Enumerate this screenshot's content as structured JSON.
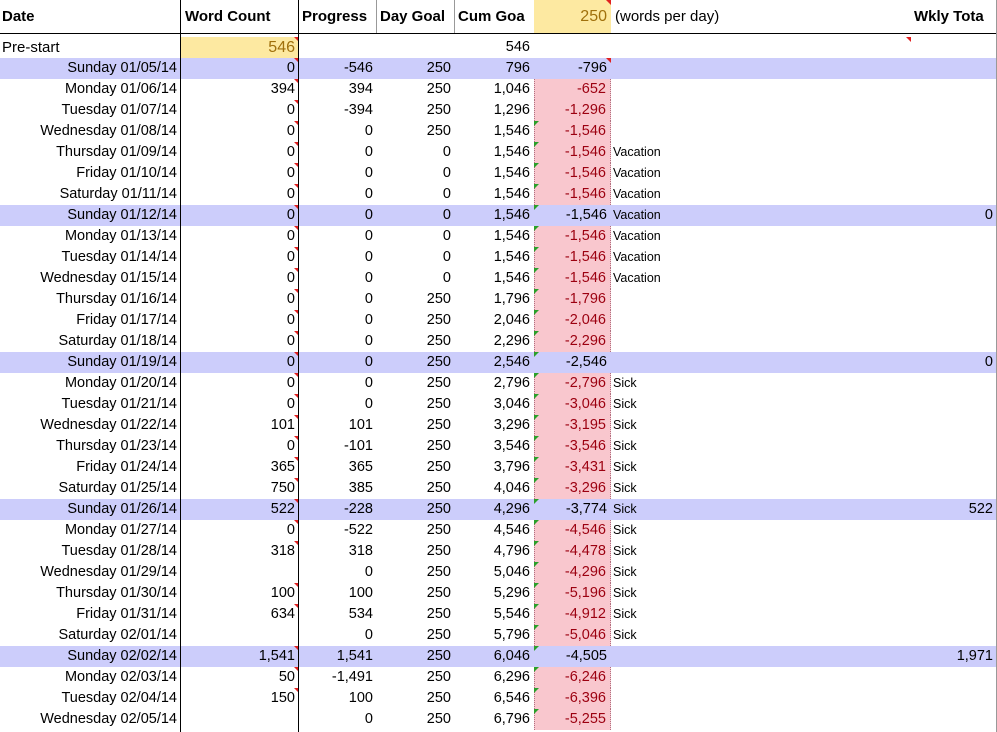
{
  "header": {
    "date": "Date",
    "word_count": "Word Count",
    "progress": "Progress",
    "day_goal": "Day Goal",
    "cum_goal": "Cum Goa",
    "goal_value": "250",
    "goal_note": "(words per day)",
    "weekly_total": "Wkly Tota"
  },
  "prestart": {
    "label": "Pre-start",
    "word_count": "546",
    "cum_goal": "546"
  },
  "colors": {
    "sunday_row": "#cccdfb",
    "negative_fill": "#f9c7ce",
    "negative_text": "#9c0010",
    "highlight": "#fde9a1"
  },
  "rows": [
    {
      "date": "Sunday 01/05/14",
      "wc": "0",
      "pr": "-546",
      "dg": "250",
      "cg": "796",
      "df": "-796",
      "note": "",
      "wt": "",
      "sunday": true,
      "neg": false
    },
    {
      "date": "Monday 01/06/14",
      "wc": "394",
      "pr": "394",
      "dg": "250",
      "cg": "1,046",
      "df": "-652",
      "note": "",
      "wt": "",
      "sunday": false,
      "neg": true
    },
    {
      "date": "Tuesday 01/07/14",
      "wc": "0",
      "pr": "-394",
      "dg": "250",
      "cg": "1,296",
      "df": "-1,296",
      "note": "",
      "wt": "",
      "sunday": false,
      "neg": true
    },
    {
      "date": "Wednesday 01/08/14",
      "wc": "0",
      "pr": "0",
      "dg": "250",
      "cg": "1,546",
      "df": "-1,546",
      "note": "",
      "wt": "",
      "sunday": false,
      "neg": true
    },
    {
      "date": "Thursday 01/09/14",
      "wc": "0",
      "pr": "0",
      "dg": "0",
      "cg": "1,546",
      "df": "-1,546",
      "note": "Vacation",
      "wt": "",
      "sunday": false,
      "neg": true
    },
    {
      "date": "Friday 01/10/14",
      "wc": "0",
      "pr": "0",
      "dg": "0",
      "cg": "1,546",
      "df": "-1,546",
      "note": "Vacation",
      "wt": "",
      "sunday": false,
      "neg": true
    },
    {
      "date": "Saturday 01/11/14",
      "wc": "0",
      "pr": "0",
      "dg": "0",
      "cg": "1,546",
      "df": "-1,546",
      "note": "Vacation",
      "wt": "",
      "sunday": false,
      "neg": true
    },
    {
      "date": "Sunday 01/12/14",
      "wc": "0",
      "pr": "0",
      "dg": "0",
      "cg": "1,546",
      "df": "-1,546",
      "note": "Vacation",
      "wt": "0",
      "sunday": true,
      "neg": false
    },
    {
      "date": "Monday 01/13/14",
      "wc": "0",
      "pr": "0",
      "dg": "0",
      "cg": "1,546",
      "df": "-1,546",
      "note": "Vacation",
      "wt": "",
      "sunday": false,
      "neg": true
    },
    {
      "date": "Tuesday 01/14/14",
      "wc": "0",
      "pr": "0",
      "dg": "0",
      "cg": "1,546",
      "df": "-1,546",
      "note": "Vacation",
      "wt": "",
      "sunday": false,
      "neg": true
    },
    {
      "date": "Wednesday 01/15/14",
      "wc": "0",
      "pr": "0",
      "dg": "0",
      "cg": "1,546",
      "df": "-1,546",
      "note": "Vacation",
      "wt": "",
      "sunday": false,
      "neg": true
    },
    {
      "date": "Thursday 01/16/14",
      "wc": "0",
      "pr": "0",
      "dg": "250",
      "cg": "1,796",
      "df": "-1,796",
      "note": "",
      "wt": "",
      "sunday": false,
      "neg": true
    },
    {
      "date": "Friday 01/17/14",
      "wc": "0",
      "pr": "0",
      "dg": "250",
      "cg": "2,046",
      "df": "-2,046",
      "note": "",
      "wt": "",
      "sunday": false,
      "neg": true
    },
    {
      "date": "Saturday 01/18/14",
      "wc": "0",
      "pr": "0",
      "dg": "250",
      "cg": "2,296",
      "df": "-2,296",
      "note": "",
      "wt": "",
      "sunday": false,
      "neg": true
    },
    {
      "date": "Sunday 01/19/14",
      "wc": "0",
      "pr": "0",
      "dg": "250",
      "cg": "2,546",
      "df": "-2,546",
      "note": "",
      "wt": "0",
      "sunday": true,
      "neg": false
    },
    {
      "date": "Monday 01/20/14",
      "wc": "0",
      "pr": "0",
      "dg": "250",
      "cg": "2,796",
      "df": "-2,796",
      "note": "Sick",
      "wt": "",
      "sunday": false,
      "neg": true
    },
    {
      "date": "Tuesday 01/21/14",
      "wc": "0",
      "pr": "0",
      "dg": "250",
      "cg": "3,046",
      "df": "-3,046",
      "note": "Sick",
      "wt": "",
      "sunday": false,
      "neg": true
    },
    {
      "date": "Wednesday 01/22/14",
      "wc": "101",
      "pr": "101",
      "dg": "250",
      "cg": "3,296",
      "df": "-3,195",
      "note": "Sick",
      "wt": "",
      "sunday": false,
      "neg": true
    },
    {
      "date": "Thursday 01/23/14",
      "wc": "0",
      "pr": "-101",
      "dg": "250",
      "cg": "3,546",
      "df": "-3,546",
      "note": "Sick",
      "wt": "",
      "sunday": false,
      "neg": true
    },
    {
      "date": "Friday 01/24/14",
      "wc": "365",
      "pr": "365",
      "dg": "250",
      "cg": "3,796",
      "df": "-3,431",
      "note": "Sick",
      "wt": "",
      "sunday": false,
      "neg": true
    },
    {
      "date": "Saturday 01/25/14",
      "wc": "750",
      "pr": "385",
      "dg": "250",
      "cg": "4,046",
      "df": "-3,296",
      "note": "Sick",
      "wt": "",
      "sunday": false,
      "neg": true
    },
    {
      "date": "Sunday 01/26/14",
      "wc": "522",
      "pr": "-228",
      "dg": "250",
      "cg": "4,296",
      "df": "-3,774",
      "note": "Sick",
      "wt": "522",
      "sunday": true,
      "neg": false
    },
    {
      "date": "Monday 01/27/14",
      "wc": "0",
      "pr": "-522",
      "dg": "250",
      "cg": "4,546",
      "df": "-4,546",
      "note": "Sick",
      "wt": "",
      "sunday": false,
      "neg": true
    },
    {
      "date": "Tuesday 01/28/14",
      "wc": "318",
      "pr": "318",
      "dg": "250",
      "cg": "4,796",
      "df": "-4,478",
      "note": "Sick",
      "wt": "",
      "sunday": false,
      "neg": true
    },
    {
      "date": "Wednesday 01/29/14",
      "wc": "",
      "pr": "0",
      "dg": "250",
      "cg": "5,046",
      "df": "-4,296",
      "note": "Sick",
      "wt": "",
      "sunday": false,
      "neg": true
    },
    {
      "date": "Thursday 01/30/14",
      "wc": "100",
      "pr": "100",
      "dg": "250",
      "cg": "5,296",
      "df": "-5,196",
      "note": "Sick",
      "wt": "",
      "sunday": false,
      "neg": true
    },
    {
      "date": "Friday 01/31/14",
      "wc": "634",
      "pr": "534",
      "dg": "250",
      "cg": "5,546",
      "df": "-4,912",
      "note": "Sick",
      "wt": "",
      "sunday": false,
      "neg": true
    },
    {
      "date": "Saturday 02/01/14",
      "wc": "",
      "pr": "0",
      "dg": "250",
      "cg": "5,796",
      "df": "-5,046",
      "note": "Sick",
      "wt": "",
      "sunday": false,
      "neg": true
    },
    {
      "date": "Sunday 02/02/14",
      "wc": "1,541",
      "pr": "1,541",
      "dg": "250",
      "cg": "6,046",
      "df": "-4,505",
      "note": "",
      "wt": "1,971",
      "sunday": true,
      "neg": false
    },
    {
      "date": "Monday 02/03/14",
      "wc": "50",
      "pr": "-1,491",
      "dg": "250",
      "cg": "6,296",
      "df": "-6,246",
      "note": "",
      "wt": "",
      "sunday": false,
      "neg": true
    },
    {
      "date": "Tuesday 02/04/14",
      "wc": "150",
      "pr": "100",
      "dg": "250",
      "cg": "6,546",
      "df": "-6,396",
      "note": "",
      "wt": "",
      "sunday": false,
      "neg": true
    },
    {
      "date": "Wednesday 02/05/14",
      "wc": "",
      "pr": "0",
      "dg": "250",
      "cg": "6,796",
      "df": "-5,255",
      "note": "",
      "wt": "",
      "sunday": false,
      "neg": true
    }
  ]
}
